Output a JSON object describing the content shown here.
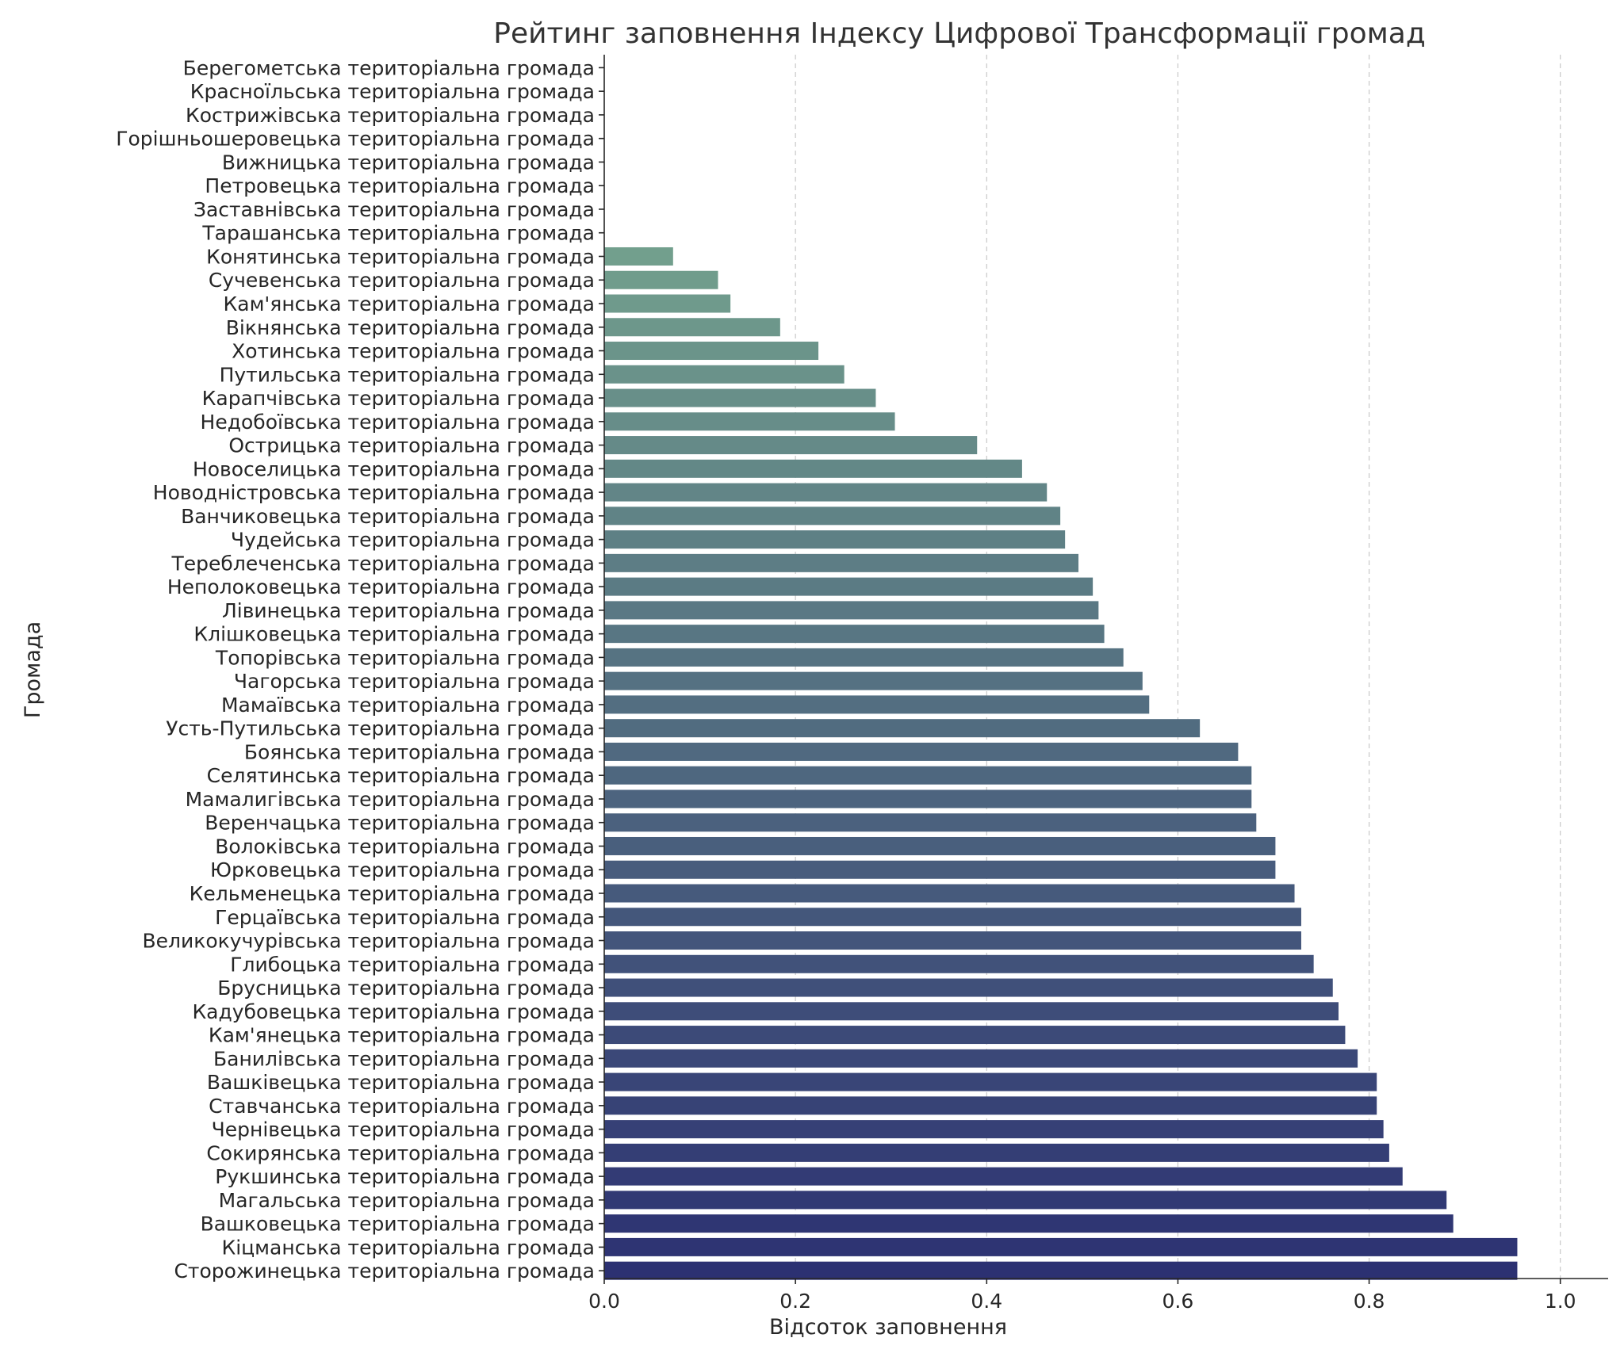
{
  "chart_data": {
    "type": "bar",
    "orientation": "horizontal",
    "title": "Рейтинг заповнення Індексу Цифрової Трансформації громад",
    "xlabel": "Відсоток заповнення",
    "ylabel": "Громада",
    "xlim": [
      0,
      1.05
    ],
    "xticks": [
      "0.0",
      "0.2",
      "0.4",
      "0.6",
      "0.8",
      "1.0"
    ],
    "xtick_values": [
      0,
      0.2,
      0.4,
      0.6,
      0.8,
      1.0
    ],
    "grid": "vertical dashed",
    "palette": "crest",
    "color_start": "#7fb392",
    "color_end": "#2c3172",
    "categories": [
      "Берегометська територіальна громада",
      "Красноїльська територіальна громада",
      "Кострижівська територіальна громада",
      "Горішньошеровецька територіальна громада",
      "Вижницька територіальна громада",
      "Петровецька територіальна громада",
      "Заставнівська територіальна громада",
      "Тарашанська територіальна громада",
      "Конятинська територіальна громада",
      "Сучевенська територіальна громада",
      "Кам'янська територіальна громада",
      "Вікнянська територіальна громада",
      "Хотинська територіальна громада",
      "Путильська територіальна громада",
      "Карапчівська територіальна громада",
      "Недобоївська територіальна громада",
      "Острицька територіальна громада",
      "Новоселицька територіальна громада",
      "Новодністровська територіальна громада",
      "Ванчиковецька територіальна громада",
      "Чудейська територіальна громада",
      "Тереблеченська територіальна громада",
      "Неполоковецька територіальна громада",
      "Лівинецька територіальна громада",
      "Клішковецька територіальна громада",
      "Топорівська територіальна громада",
      "Чагорська територіальна громада",
      "Мамаївська територіальна громада",
      "Усть-Путильська територіальна громада",
      "Боянська територіальна громада",
      "Селятинська територіальна громада",
      "Мамалигівська територіальна громада",
      "Веренчацька територіальна громада",
      "Волоківська територіальна громада",
      "Юрковецька територіальна громада",
      "Кельменецька територіальна громада",
      "Герцаївська територіальна громада",
      "Великокучурівська територіальна громада",
      "Глибоцька територіальна громада",
      "Брусницька територіальна громада",
      "Кадубовецька територіальна громада",
      "Кам'янецька територіальна громада",
      "Банилівська територіальна громада",
      "Вашківецька територіальна громада",
      "Ставчанська територіальна громада",
      "Чернівецька територіальна громада",
      "Сокирянська територіальна громада",
      "Рукшинська територіальна громада",
      "Магальська територіальна громада",
      "Вашковецька територіальна громада",
      "Кіцманська територіальна громада",
      "Сторожинецька територіальна громада"
    ],
    "values": [
      0,
      0,
      0,
      0,
      0,
      0,
      0,
      0,
      0.072,
      0.119,
      0.132,
      0.184,
      0.224,
      0.251,
      0.284,
      0.304,
      0.39,
      0.437,
      0.463,
      0.477,
      0.482,
      0.496,
      0.511,
      0.517,
      0.523,
      0.543,
      0.563,
      0.57,
      0.623,
      0.663,
      0.677,
      0.677,
      0.682,
      0.702,
      0.702,
      0.722,
      0.729,
      0.729,
      0.742,
      0.762,
      0.768,
      0.775,
      0.788,
      0.808,
      0.808,
      0.815,
      0.821,
      0.835,
      0.881,
      0.888,
      0.955,
      0.955
    ]
  }
}
